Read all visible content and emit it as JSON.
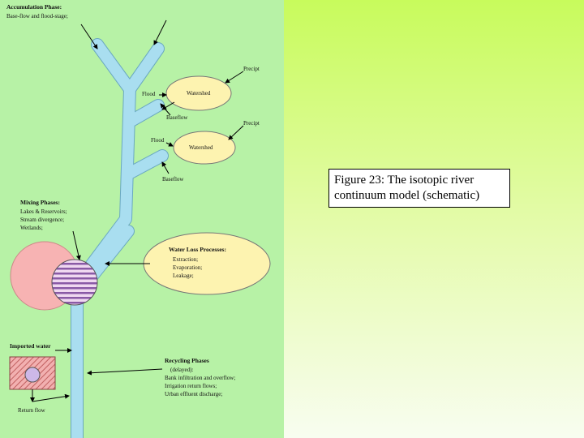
{
  "accumulation": {
    "title": "Accumulation Phase:",
    "subtitle": "Base-flow and flood-stage;"
  },
  "tributaries": [
    {
      "precip": "Precipt",
      "flood": "Flood",
      "watershed": "Watershed",
      "baseflow": "Baseflow"
    },
    {
      "precip": "Precipt",
      "flood": "Flood",
      "watershed": "Watershed",
      "baseflow": "Baseflow"
    }
  ],
  "mixing": {
    "title": "Mixing Phases:",
    "items": [
      "Lakes & Reservoirs;",
      "Stream divergence;",
      "Wetlands;"
    ]
  },
  "water_loss": {
    "title": "Water Loss Processes:",
    "items": [
      "Extraction;",
      "Evaporation;",
      "Leakage;"
    ]
  },
  "imported": "Imported water",
  "return_flow": "Return flow",
  "recycling": {
    "title": "Recycling Phases",
    "subtitle": "(delayed):",
    "items": [
      "Bank infiltration and overflow;",
      "Irrigation return flows;",
      "Urban effluent discharge;"
    ]
  },
  "caption": "Figure 23: The isotopic river continuum model (schematic)"
}
